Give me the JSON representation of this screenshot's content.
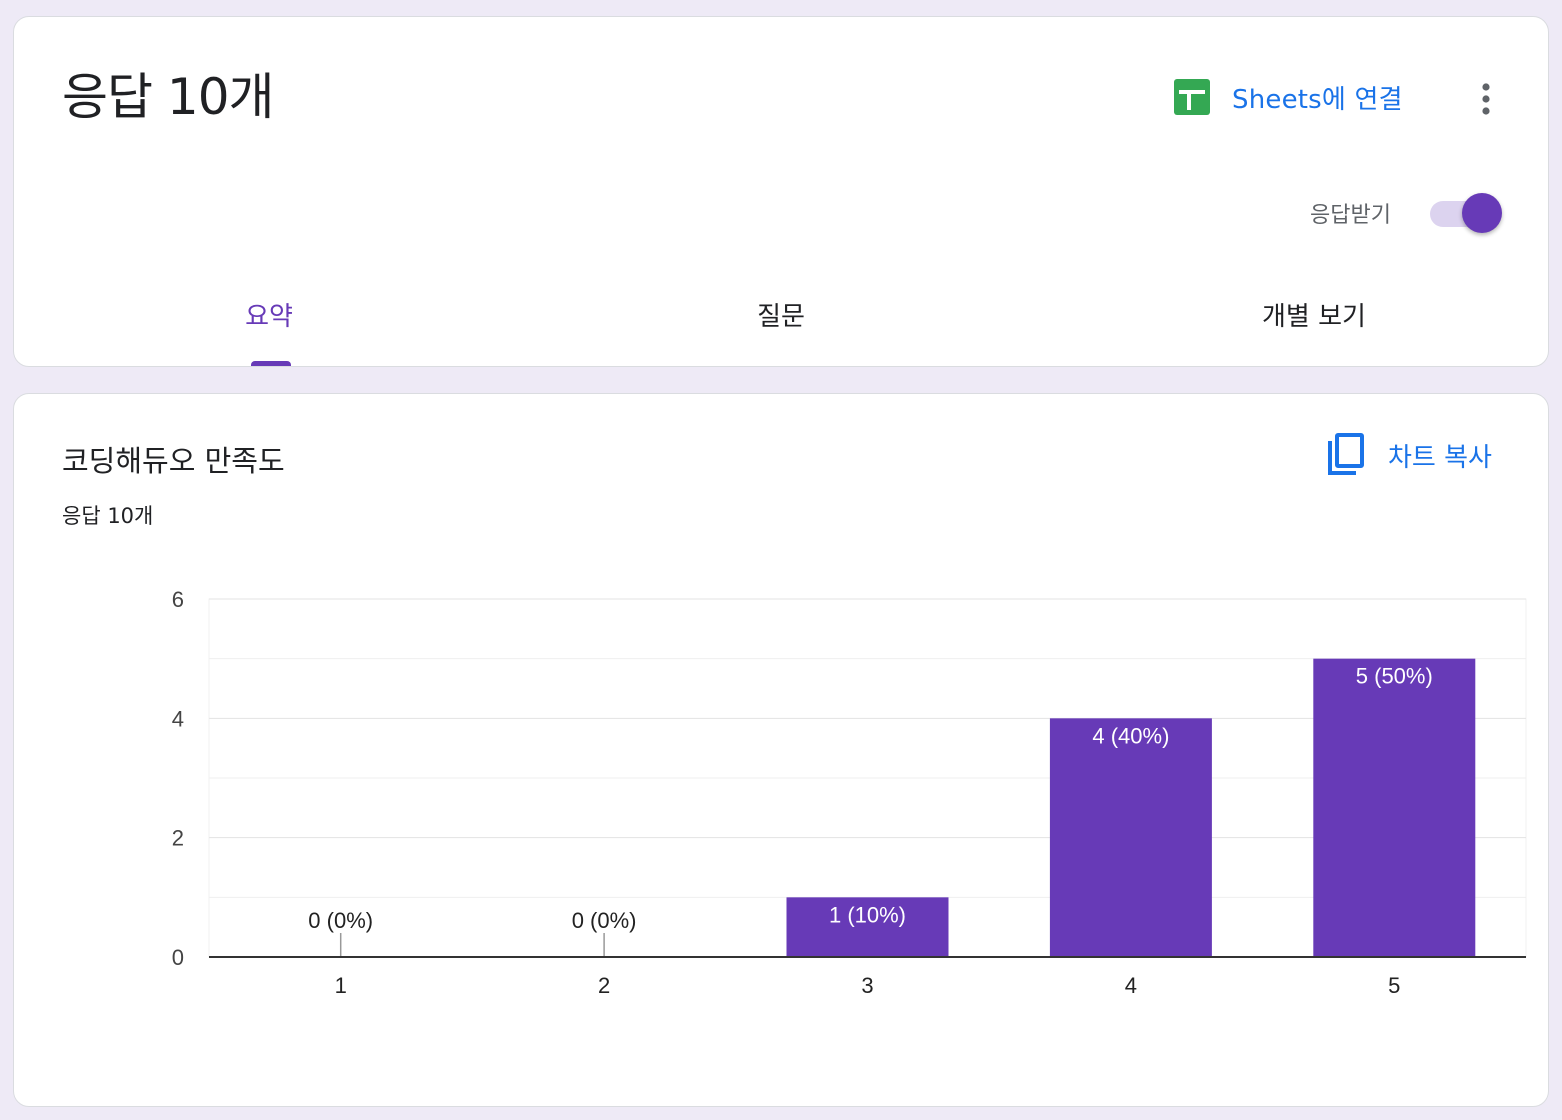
{
  "header": {
    "title": "응답 10개",
    "sheets_link": "Sheets에 연결",
    "accept_responses_label": "응답받기",
    "accept_responses_on": true,
    "more_icon": "more-vert-icon",
    "sheets_icon": "google-sheets-icon"
  },
  "tabs": [
    {
      "label": "요약",
      "active": true
    },
    {
      "label": "질문",
      "active": false
    },
    {
      "label": "개별 보기",
      "active": false
    }
  ],
  "question_card": {
    "title": "코딩해듀오 만족도",
    "response_count": "응답 10개",
    "copy_chart_label": "차트 복사",
    "copy_icon": "copy-icon"
  },
  "colors": {
    "accent": "#673ab7",
    "link": "#1a73e8",
    "sheets_green": "#34a853"
  },
  "chart_data": {
    "type": "bar",
    "categories": [
      "1",
      "2",
      "3",
      "4",
      "5"
    ],
    "values": [
      0,
      0,
      1,
      4,
      5
    ],
    "data_labels": [
      "0 (0%)",
      "0 (0%)",
      "1 (10%)",
      "4 (40%)",
      "5 (50%)"
    ],
    "ylim": [
      0,
      6
    ],
    "yticks": [
      "0",
      "2",
      "4",
      "6"
    ],
    "grid": true,
    "color": "#673ab7"
  }
}
